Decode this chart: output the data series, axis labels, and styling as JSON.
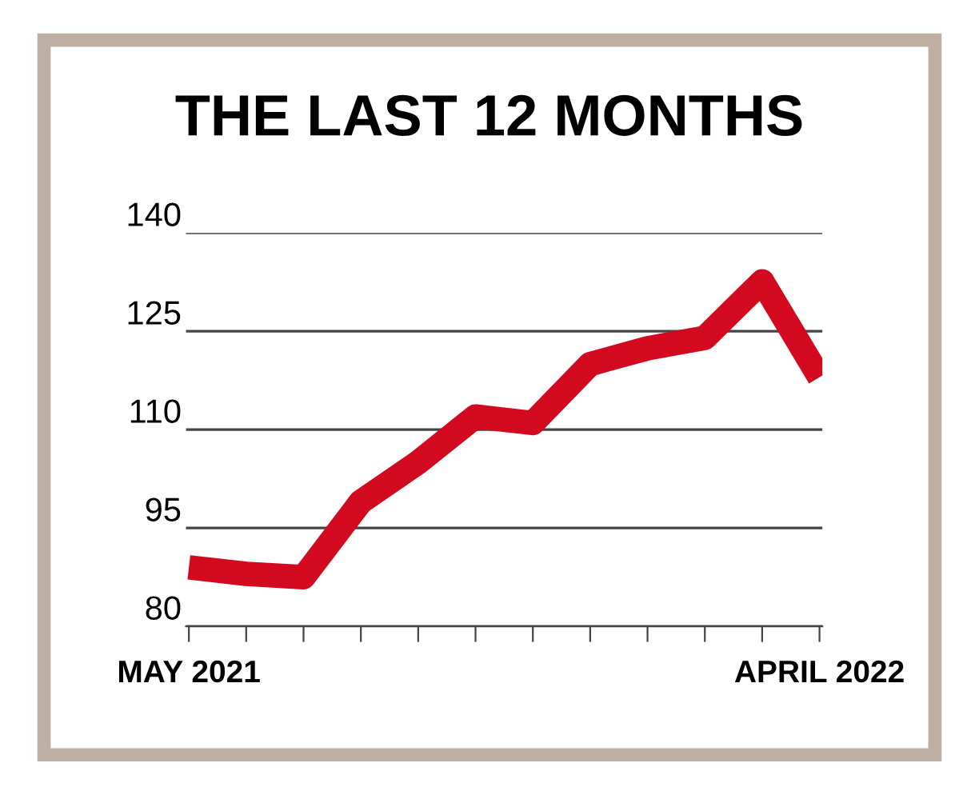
{
  "chart_data": {
    "type": "line",
    "title": "THE LAST 12 MONTHS",
    "categories": [
      "MAY 2021",
      null,
      null,
      null,
      null,
      null,
      null,
      null,
      null,
      null,
      null,
      "APRIL 2022"
    ],
    "series": [
      {
        "color": "#d2091f",
        "values": [
          89,
          88,
          87.5,
          99,
          105,
          112,
          111,
          120,
          122.4,
          124,
          132.6,
          118
        ]
      }
    ],
    "ylim": [
      80,
      140
    ],
    "yticks": [
      80,
      95,
      110,
      125,
      140
    ],
    "grid": "y",
    "marker": "none",
    "line_style": "solid",
    "legend": false
  }
}
